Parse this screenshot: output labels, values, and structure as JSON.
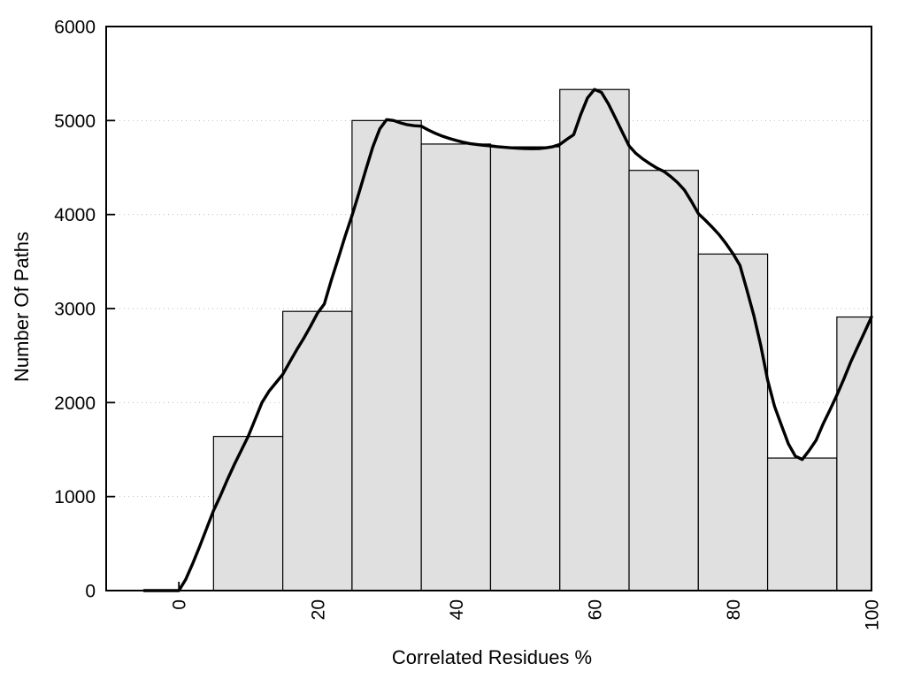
{
  "chart_data": {
    "type": "bar",
    "subtype": "histogram_with_density_curve",
    "title": "",
    "xlabel": "Correlated Residues %",
    "ylabel": "Number Of Paths",
    "xlim": [
      -10.5,
      100
    ],
    "ylim": [
      0,
      6000
    ],
    "x_ticks": [
      0,
      20,
      40,
      60,
      80,
      100
    ],
    "y_ticks": [
      0,
      1000,
      2000,
      3000,
      4000,
      5000,
      6000
    ],
    "x_tick_rotation": -90,
    "grid": {
      "horizontal": true,
      "vertical": false,
      "style": "dotted"
    },
    "legend": "none",
    "bars": [
      {
        "from": 5,
        "to": 15,
        "count": 1640
      },
      {
        "from": 15,
        "to": 25,
        "count": 2970
      },
      {
        "from": 25,
        "to": 35,
        "count": 5000
      },
      {
        "from": 35,
        "to": 45,
        "count": 4750
      },
      {
        "from": 45,
        "to": 55,
        "count": 4720
      },
      {
        "from": 55,
        "to": 65,
        "count": 5330
      },
      {
        "from": 65,
        "to": 75,
        "count": 4470
      },
      {
        "from": 75,
        "to": 85,
        "count": 3580
      },
      {
        "from": 85,
        "to": 95,
        "count": 1410
      },
      {
        "from": 95,
        "to": 105,
        "count": 2910
      }
    ],
    "curve": [
      [
        -5,
        0
      ],
      [
        -1,
        0
      ],
      [
        0,
        0
      ],
      [
        1,
        120
      ],
      [
        2,
        290
      ],
      [
        3,
        470
      ],
      [
        4,
        660
      ],
      [
        5,
        850
      ],
      [
        6,
        1010
      ],
      [
        7,
        1180
      ],
      [
        8,
        1340
      ],
      [
        9,
        1490
      ],
      [
        10,
        1640
      ],
      [
        11,
        1820
      ],
      [
        12,
        2000
      ],
      [
        13,
        2120
      ],
      [
        14,
        2210
      ],
      [
        15,
        2300
      ],
      [
        16,
        2430
      ],
      [
        17,
        2560
      ],
      [
        18,
        2680
      ],
      [
        19,
        2810
      ],
      [
        20,
        2950
      ],
      [
        21,
        3050
      ],
      [
        22,
        3300
      ],
      [
        23,
        3530
      ],
      [
        24,
        3770
      ],
      [
        25,
        3990
      ],
      [
        26,
        4230
      ],
      [
        27,
        4480
      ],
      [
        28,
        4720
      ],
      [
        29,
        4910
      ],
      [
        30,
        5010
      ],
      [
        31,
        5000
      ],
      [
        32,
        4975
      ],
      [
        33,
        4955
      ],
      [
        34,
        4945
      ],
      [
        35,
        4940
      ],
      [
        36,
        4900
      ],
      [
        37,
        4865
      ],
      [
        38,
        4835
      ],
      [
        39,
        4810
      ],
      [
        40,
        4790
      ],
      [
        41,
        4770
      ],
      [
        42,
        4755
      ],
      [
        43,
        4745
      ],
      [
        44,
        4737
      ],
      [
        45,
        4730
      ],
      [
        46,
        4722
      ],
      [
        47,
        4715
      ],
      [
        48,
        4710
      ],
      [
        49,
        4705
      ],
      [
        50,
        4702
      ],
      [
        51,
        4700
      ],
      [
        52,
        4702
      ],
      [
        53,
        4710
      ],
      [
        54,
        4722
      ],
      [
        55,
        4745
      ],
      [
        56,
        4800
      ],
      [
        57,
        4850
      ],
      [
        58,
        5060
      ],
      [
        59,
        5240
      ],
      [
        60,
        5330
      ],
      [
        61,
        5300
      ],
      [
        62,
        5180
      ],
      [
        63,
        5030
      ],
      [
        64,
        4880
      ],
      [
        65,
        4730
      ],
      [
        66,
        4650
      ],
      [
        67,
        4590
      ],
      [
        68,
        4540
      ],
      [
        69,
        4495
      ],
      [
        70,
        4460
      ],
      [
        71,
        4405
      ],
      [
        72,
        4340
      ],
      [
        73,
        4260
      ],
      [
        74,
        4140
      ],
      [
        75,
        4010
      ],
      [
        76,
        3940
      ],
      [
        77,
        3865
      ],
      [
        78,
        3785
      ],
      [
        79,
        3690
      ],
      [
        80,
        3585
      ],
      [
        81,
        3460
      ],
      [
        82,
        3200
      ],
      [
        83,
        2930
      ],
      [
        84,
        2610
      ],
      [
        85,
        2240
      ],
      [
        86,
        1960
      ],
      [
        87,
        1760
      ],
      [
        88,
        1560
      ],
      [
        89,
        1430
      ],
      [
        90,
        1395
      ],
      [
        91,
        1490
      ],
      [
        92,
        1600
      ],
      [
        93,
        1770
      ],
      [
        94,
        1920
      ],
      [
        95,
        2080
      ],
      [
        96,
        2250
      ],
      [
        97,
        2430
      ],
      [
        98,
        2590
      ],
      [
        99,
        2750
      ],
      [
        100,
        2910
      ]
    ],
    "colors": {
      "background": "#ffffff",
      "bar_fill": "#e0e0e0",
      "bar_stroke": "#000000",
      "curve": "#000000",
      "grid": "#bdbdbd",
      "axis": "#000000",
      "text": "#000000"
    }
  }
}
